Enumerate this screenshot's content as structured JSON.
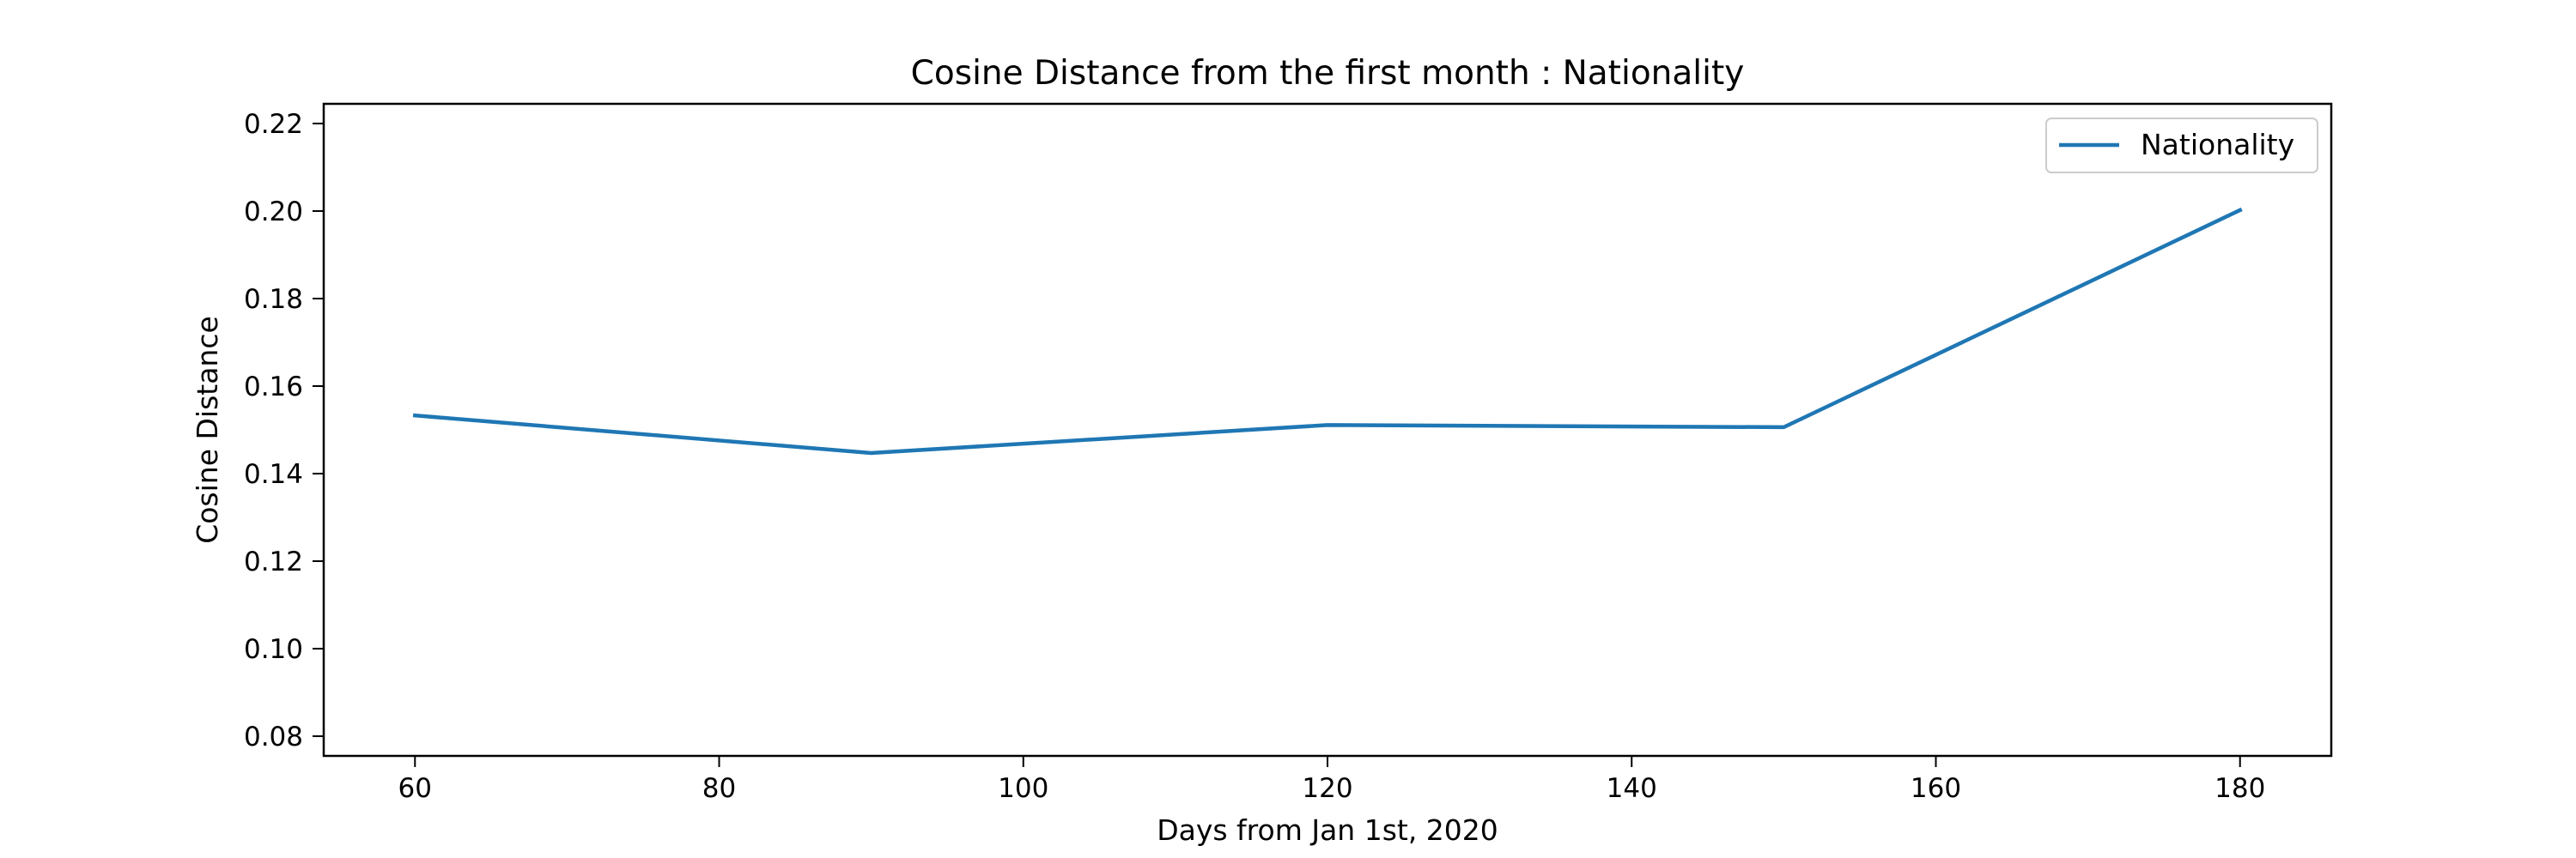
{
  "chart_data": {
    "type": "line",
    "title": "Cosine Distance from the first month : Nationality",
    "xlabel": "Days from Jan 1st, 2020",
    "ylabel": "Cosine Distance",
    "xlim": [
      54,
      186
    ],
    "ylim": [
      0.0755,
      0.2245
    ],
    "x_ticks": [
      60,
      80,
      100,
      120,
      140,
      160,
      180
    ],
    "x_tick_labels": [
      "60",
      "80",
      "100",
      "120",
      "140",
      "160",
      "180"
    ],
    "y_ticks": [
      0.08,
      0.1,
      0.12,
      0.14,
      0.16,
      0.18,
      0.2,
      0.22
    ],
    "y_tick_labels": [
      "0.08",
      "0.10",
      "0.12",
      "0.14",
      "0.16",
      "0.18",
      "0.20",
      "0.22"
    ],
    "grid": false,
    "legend": {
      "placement": "top-right"
    },
    "x": [
      60,
      90,
      120,
      150,
      180
    ],
    "series": [
      {
        "name": "Nationality",
        "color": "#1f77b4",
        "values": [
          0.1533,
          0.1447,
          0.1511,
          0.1506,
          0.2002
        ]
      }
    ]
  }
}
